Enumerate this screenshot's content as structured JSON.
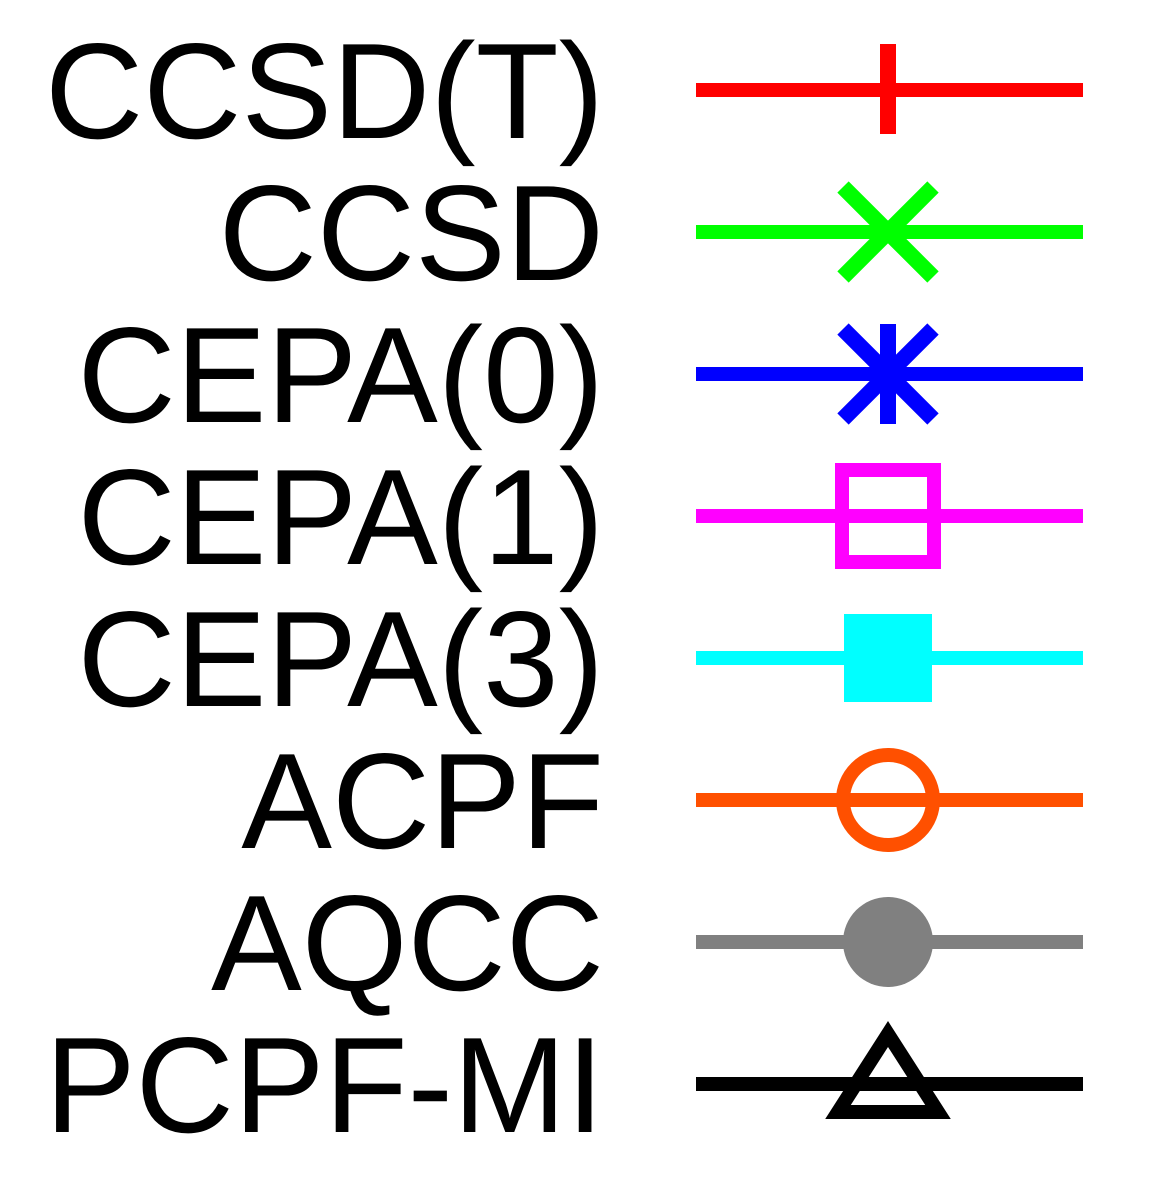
{
  "chart_data": {
    "type": "legend",
    "title": "",
    "series": [
      {
        "name": "CCSD(T)",
        "color": "#ff0000",
        "marker": "plus"
      },
      {
        "name": "CCSD",
        "color": "#00ff00",
        "marker": "x"
      },
      {
        "name": "CEPA(0)",
        "color": "#0000ff",
        "marker": "asterisk"
      },
      {
        "name": "CEPA(1)",
        "color": "#ff00ff",
        "marker": "open-square"
      },
      {
        "name": "CEPA(3)",
        "color": "#00ffff",
        "marker": "filled-square"
      },
      {
        "name": "ACPF",
        "color": "#ff5000",
        "marker": "open-circle"
      },
      {
        "name": "AQCC",
        "color": "#808080",
        "marker": "filled-circle"
      },
      {
        "name": "PCPF-MI",
        "color": "#000000",
        "marker": "open-triangle"
      }
    ]
  }
}
